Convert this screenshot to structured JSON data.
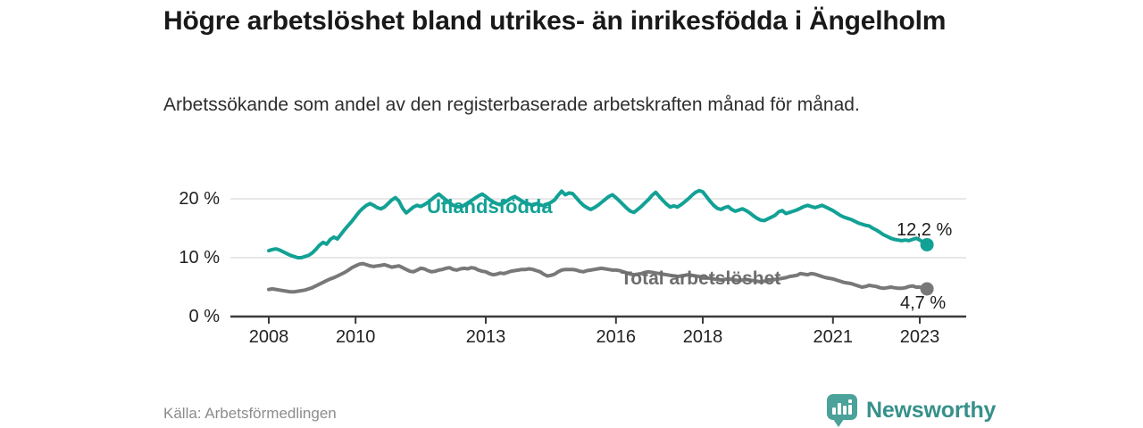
{
  "header": {
    "title": "Högre arbetslöshet bland utrikes- än inrikesfödda i Ängelholm",
    "subtitle": "Arbetssökande som andel av den registerbaserade arbetskraften månad för månad."
  },
  "footer": {
    "source": "Källa: Arbetsförmedlingen",
    "brand_name": "Newsworthy",
    "brand_color": "#37908a"
  },
  "chart_data": {
    "type": "line",
    "title": "Högre arbetslöshet bland utrikes- än inrikesfödda i Ängelholm",
    "subtitle": "Arbetssökande som andel av den registerbaserade arbetskraften månad för månad.",
    "x_unit": "month",
    "x_start": "2008-01",
    "x_end": "2023-03",
    "x_tick_years": [
      2008,
      2010,
      2013,
      2016,
      2018,
      2021,
      2023
    ],
    "y_ticks": [
      {
        "value": 0,
        "label": "0 %"
      },
      {
        "value": 10,
        "label": "10 %"
      },
      {
        "value": 20,
        "label": "20 %"
      }
    ],
    "ylim": [
      0,
      23
    ],
    "grid": "horizontal",
    "legend_position": "inline",
    "axis_color": "#3a3a3a",
    "grid_color": "#d9d9d9",
    "series": [
      {
        "name": "Utlandsfödda",
        "color": "#12A195",
        "end_label": "12,2 %",
        "end_value": 12.2,
        "values": [
          11.2,
          11.4,
          11.5,
          11.3,
          11.0,
          10.7,
          10.4,
          10.2,
          10.0,
          10.0,
          10.2,
          10.4,
          10.8,
          11.4,
          12.1,
          12.6,
          12.3,
          13.1,
          13.5,
          13.2,
          14.0,
          14.8,
          15.5,
          16.2,
          17.0,
          17.8,
          18.4,
          18.9,
          19.2,
          18.9,
          18.5,
          18.3,
          18.6,
          19.2,
          19.8,
          20.2,
          19.6,
          18.4,
          17.6,
          18.1,
          18.6,
          18.9,
          18.7,
          19.0,
          19.4,
          19.9,
          20.4,
          20.8,
          20.3,
          19.8,
          19.3,
          18.9,
          18.7,
          18.6,
          18.9,
          19.3,
          19.7,
          20.1,
          20.5,
          20.8,
          20.4,
          19.9,
          19.5,
          19.2,
          19.0,
          19.3,
          19.7,
          20.1,
          20.4,
          20.0,
          19.6,
          19.3,
          19.1,
          18.9,
          19.2,
          19.0,
          18.8,
          19.1,
          19.4,
          19.8,
          20.6,
          21.3,
          20.7,
          21.0,
          20.9,
          20.2,
          19.5,
          18.9,
          18.5,
          18.2,
          18.5,
          18.9,
          19.4,
          19.9,
          20.4,
          20.7,
          20.2,
          19.6,
          19.0,
          18.4,
          17.9,
          17.7,
          18.2,
          18.7,
          19.3,
          19.9,
          20.6,
          21.1,
          20.4,
          19.7,
          19.1,
          18.6,
          18.8,
          18.6,
          19.0,
          19.5,
          20.0,
          20.6,
          21.1,
          21.4,
          21.2,
          20.4,
          19.6,
          18.9,
          18.4,
          18.2,
          18.5,
          18.7,
          18.2,
          17.9,
          18.1,
          18.3,
          18.0,
          17.6,
          17.1,
          16.7,
          16.4,
          16.3,
          16.6,
          16.9,
          17.2,
          17.8,
          18.0,
          17.5,
          17.7,
          17.9,
          18.1,
          18.4,
          18.7,
          18.9,
          18.7,
          18.5,
          18.7,
          18.9,
          18.6,
          18.3,
          18.0,
          17.6,
          17.2,
          16.9,
          16.7,
          16.5,
          16.2,
          15.9,
          15.7,
          15.5,
          15.4,
          15.0,
          14.7,
          14.3,
          13.9,
          13.6,
          13.3,
          13.1,
          13.0,
          12.9,
          13.0,
          12.9,
          13.1,
          13.3,
          13.0,
          12.6,
          12.2
        ]
      },
      {
        "name": "Total arbetslöshet",
        "color": "#787878",
        "end_label": "4,7 %",
        "end_value": 4.7,
        "values": [
          4.6,
          4.7,
          4.6,
          4.5,
          4.4,
          4.3,
          4.2,
          4.2,
          4.3,
          4.4,
          4.5,
          4.7,
          4.9,
          5.2,
          5.5,
          5.8,
          6.1,
          6.4,
          6.6,
          6.9,
          7.2,
          7.5,
          7.9,
          8.3,
          8.6,
          8.9,
          9.0,
          8.8,
          8.6,
          8.5,
          8.6,
          8.7,
          8.8,
          8.6,
          8.4,
          8.5,
          8.6,
          8.3,
          8.0,
          7.7,
          7.6,
          7.9,
          8.2,
          8.1,
          7.8,
          7.6,
          7.7,
          7.9,
          8.0,
          8.2,
          8.3,
          8.0,
          7.9,
          8.1,
          8.2,
          8.1,
          8.3,
          8.2,
          7.9,
          7.7,
          7.6,
          7.3,
          7.1,
          7.2,
          7.4,
          7.3,
          7.5,
          7.7,
          7.8,
          7.9,
          8.0,
          8.0,
          8.1,
          8.0,
          7.8,
          7.6,
          7.2,
          6.9,
          7.0,
          7.2,
          7.6,
          7.9,
          8.0,
          8.0,
          8.0,
          7.9,
          7.7,
          7.6,
          7.8,
          7.9,
          8.0,
          8.1,
          8.2,
          8.1,
          8.0,
          7.9,
          7.9,
          7.8,
          7.6,
          7.4,
          7.2,
          7.1,
          7.2,
          7.3,
          7.5,
          7.6,
          7.5,
          7.4,
          7.3,
          7.2,
          7.1,
          7.0,
          6.9,
          6.8,
          6.9,
          7.0,
          7.1,
          7.0,
          6.9,
          6.8,
          6.7,
          6.6,
          6.5,
          6.4,
          6.3,
          6.2,
          6.3,
          6.4,
          6.3,
          6.2,
          6.1,
          6.2,
          6.3,
          6.2,
          6.1,
          6.0,
          5.9,
          6.0,
          6.1,
          6.2,
          6.3,
          6.4,
          6.5,
          6.6,
          6.8,
          6.9,
          7.0,
          7.3,
          7.2,
          7.1,
          7.3,
          7.2,
          7.0,
          6.8,
          6.6,
          6.5,
          6.4,
          6.2,
          6.0,
          5.8,
          5.7,
          5.6,
          5.4,
          5.2,
          5.0,
          5.1,
          5.3,
          5.2,
          5.1,
          4.9,
          4.8,
          4.9,
          5.0,
          4.9,
          4.8,
          4.8,
          4.9,
          5.1,
          5.2,
          5.0,
          5.0,
          4.8,
          4.7
        ]
      }
    ]
  }
}
